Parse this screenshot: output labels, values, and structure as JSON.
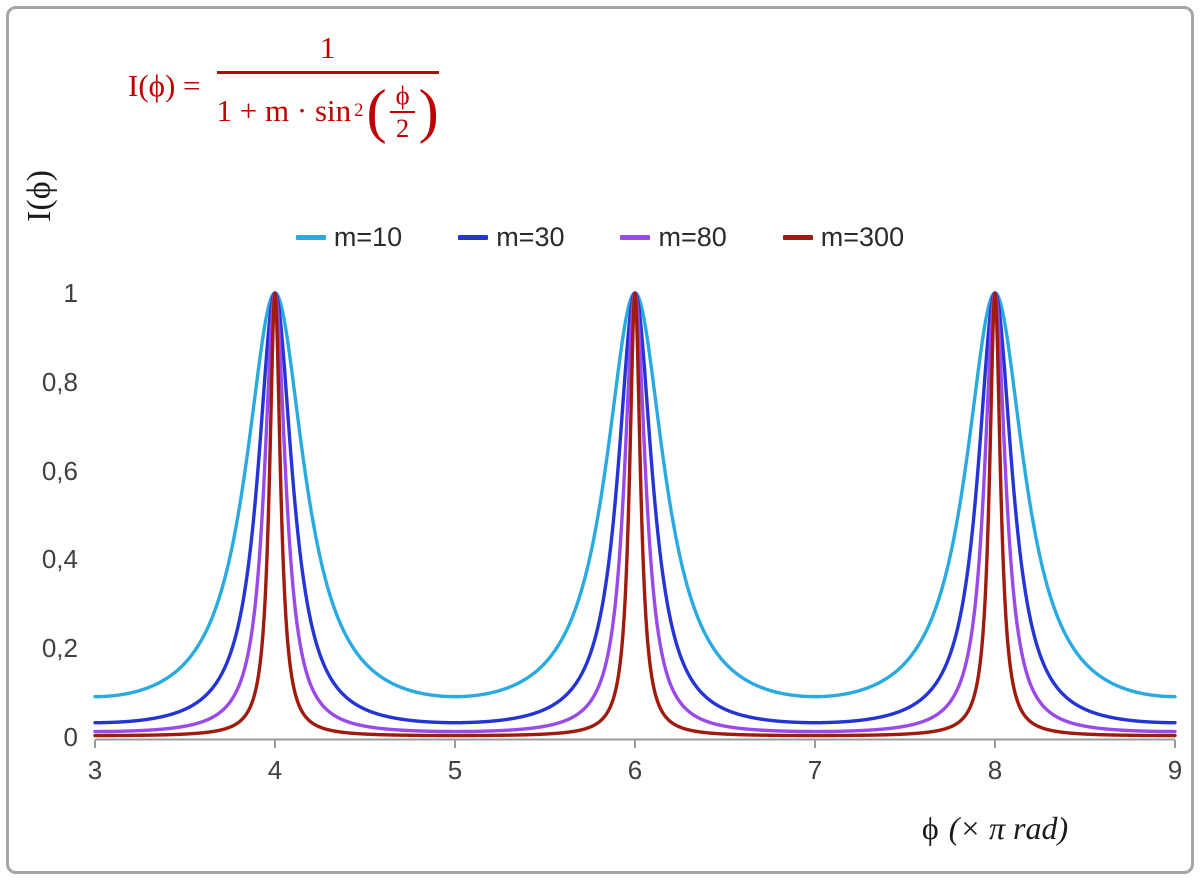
{
  "frame": {
    "border_color": "#a6a6a6",
    "background": "#ffffff"
  },
  "formula": {
    "color": "#c00000",
    "lhs": "I(ϕ) =",
    "numerator": "1",
    "den_prefix": "1 + m · sin",
    "den_exponent": "2",
    "paren_open": "(",
    "paren_close": ")",
    "inner_numerator": "ϕ",
    "inner_denominator": "2"
  },
  "axes": {
    "y_label": "I(ϕ)",
    "x_label_symbol": "ϕ",
    "x_label_unit": "(× π rad)",
    "tick_color": "#404040",
    "axis_color": "#9a9a9a"
  },
  "chart_data": {
    "type": "line",
    "title": "",
    "formula": "I(ϕ) = 1 / (1 + m · sin²(ϕ/2)), x axis gives ϕ in units of π rad",
    "xlabel": "ϕ (× π rad)",
    "ylabel": "I(ϕ)",
    "x": {
      "min": 3,
      "max": 9,
      "ticks": [
        3,
        4,
        5,
        6,
        7,
        8,
        9
      ]
    },
    "y": {
      "min": 0,
      "max": 1,
      "ticks": [
        0,
        0.2,
        0.4,
        0.6,
        0.8,
        1
      ],
      "tick_labels": [
        "0",
        "0,2",
        "0,4",
        "0,6",
        "0,8",
        "1"
      ]
    },
    "grid": false,
    "legend_position": "top-center",
    "peaks": {
      "x": [
        4,
        6,
        8
      ],
      "value": 1
    },
    "minima": {
      "x": [
        3,
        5,
        7,
        9
      ],
      "values_by_series": [
        0.0909,
        0.0323,
        0.0123,
        0.0033
      ]
    },
    "series": [
      {
        "name": "m=10",
        "m": 10,
        "color": "#29abe2"
      },
      {
        "name": "m=30",
        "m": 30,
        "color": "#2434d6"
      },
      {
        "name": "m=80",
        "m": 80,
        "color": "#9a4ae8"
      },
      {
        "name": "m=300",
        "m": 300,
        "color": "#9e1b0e"
      }
    ]
  }
}
